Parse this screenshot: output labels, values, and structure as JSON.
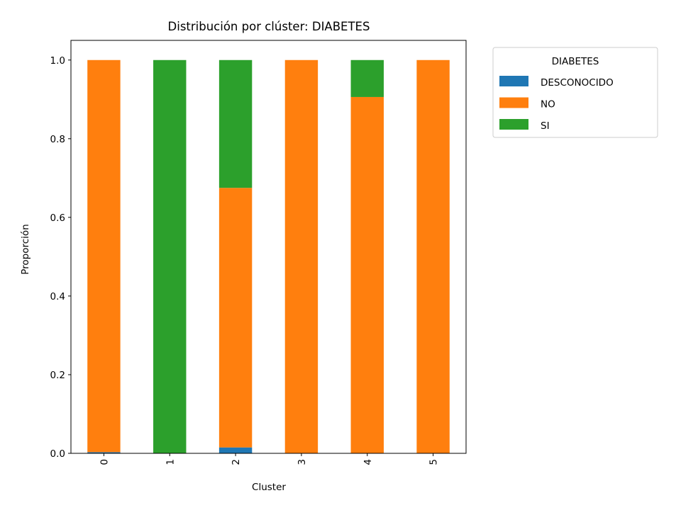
{
  "chart_data": {
    "type": "bar",
    "stacked": true,
    "title": "Distribución por clúster: DIABETES",
    "xlabel": "Cluster",
    "ylabel": "Proporción",
    "categories": [
      "0",
      "1",
      "2",
      "3",
      "4",
      "5"
    ],
    "ylim": [
      0,
      1.05
    ],
    "yticks": [
      "0.0",
      "0.2",
      "0.4",
      "0.6",
      "0.8",
      "1.0"
    ],
    "legend": {
      "title": "DIABETES",
      "position": "outside-right-top"
    },
    "series": [
      {
        "name": "DESCONOCIDO",
        "color": "#1f77b4",
        "values": [
          0.003,
          0.0,
          0.015,
          0.0,
          0.0,
          0.0
        ]
      },
      {
        "name": "NO",
        "color": "#ff7f0e",
        "values": [
          0.997,
          0.0,
          0.66,
          1.0,
          0.906,
          1.0
        ]
      },
      {
        "name": "SI",
        "color": "#2ca02c",
        "values": [
          0.0,
          1.0,
          0.325,
          0.0,
          0.094,
          0.0
        ]
      }
    ]
  }
}
